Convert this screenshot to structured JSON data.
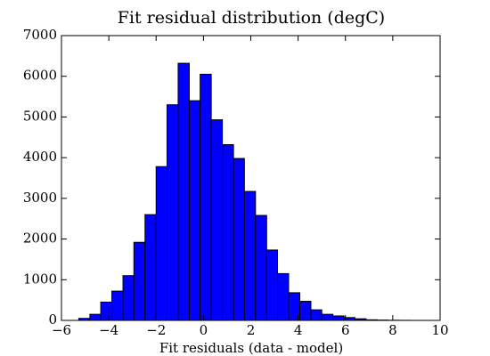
{
  "chart_data": {
    "type": "histogram",
    "title": "Fit residual distribution (degC)",
    "x_label": "Fit residuals (data - model)",
    "color": "#0000ff",
    "bins": [
      -5.27,
      -4.8,
      -4.34,
      -3.87,
      -3.4,
      -2.94,
      -2.47,
      -2.0,
      -1.54,
      -1.07,
      -0.6,
      -0.14,
      0.33,
      0.8,
      1.27,
      1.73,
      2.2,
      2.67,
      3.13,
      3.6,
      4.07,
      4.54,
      5.0,
      5.47,
      5.94,
      6.4,
      6.87,
      7.34,
      7.8,
      8.27,
      8.74
    ],
    "values": [
      50,
      150,
      450,
      720,
      1100,
      1920,
      2600,
      3780,
      5300,
      6320,
      5400,
      6050,
      4930,
      4320,
      3980,
      3170,
      2580,
      1730,
      1150,
      680,
      470,
      260,
      150,
      110,
      70,
      40,
      15,
      8,
      4,
      2
    ],
    "xlim": [
      -6,
      10
    ],
    "xticks": [
      {
        "value": -6,
        "label": "−6"
      },
      {
        "value": -4,
        "label": "−4"
      },
      {
        "value": -2,
        "label": "−2"
      },
      0,
      2,
      4,
      6,
      8,
      10
    ],
    "ylim": [
      0,
      7000
    ],
    "yticks": [
      0,
      1000,
      2000,
      3000,
      4000,
      5000,
      6000,
      7000
    ]
  }
}
